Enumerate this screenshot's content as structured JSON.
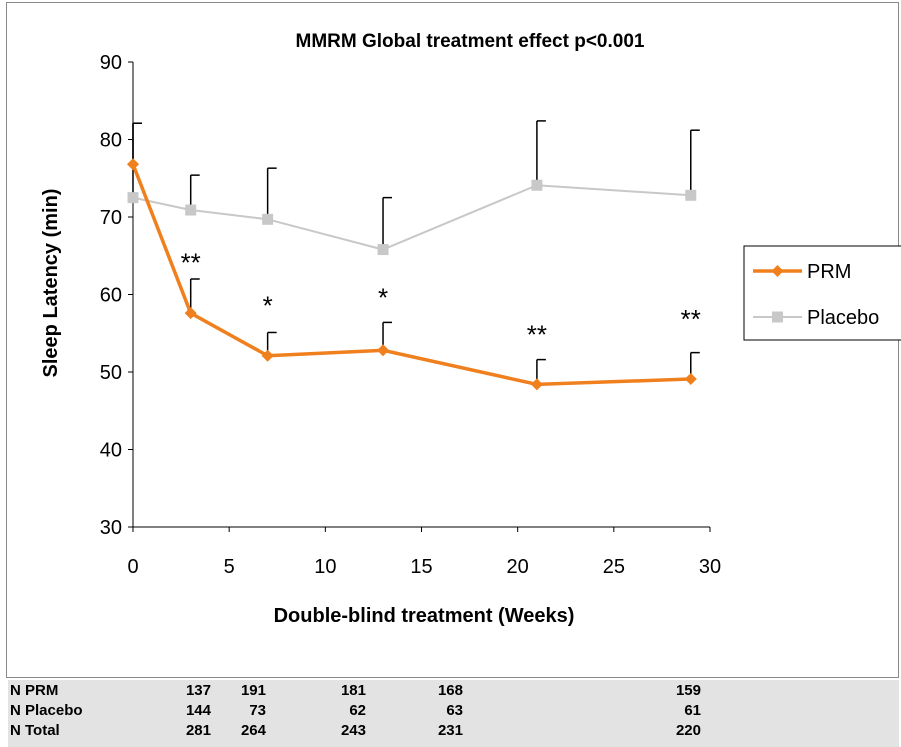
{
  "chart_data": {
    "type": "line",
    "title": "MMRM Global treatment effect p<0.001",
    "xlabel": "Double-blind treatment (Weeks)",
    "ylabel": "Sleep Latency (min)",
    "xlim": [
      0,
      30
    ],
    "ylim": [
      30,
      90
    ],
    "x_ticks": [
      0,
      5,
      10,
      15,
      20,
      25,
      30
    ],
    "y_ticks": [
      30,
      40,
      50,
      60,
      70,
      80,
      90
    ],
    "grid": false,
    "legend_position": "right",
    "series": [
      {
        "name": "PRM",
        "color": "#f07f1e",
        "marker": "diamond",
        "x": [
          0,
          3,
          7,
          13,
          21,
          29
        ],
        "y": [
          76.8,
          57.6,
          52.1,
          52.8,
          48.4,
          49.1
        ],
        "error_upper": [
          82.1,
          62.0,
          55.1,
          56.4,
          51.6,
          52.5
        ]
      },
      {
        "name": "Placebo",
        "color": "#c8c8c8",
        "marker": "square",
        "x": [
          0,
          3,
          7,
          13,
          21,
          29
        ],
        "y": [
          72.5,
          70.9,
          69.7,
          65.8,
          74.1,
          72.8
        ],
        "error_upper": [
          82.1,
          75.4,
          76.3,
          72.5,
          82.4,
          81.2
        ]
      }
    ],
    "annotations": [
      {
        "x": 3,
        "y": 64.5,
        "text": "**"
      },
      {
        "x": 7,
        "y": 59.0,
        "text": "*"
      },
      {
        "x": 13,
        "y": 60.0,
        "text": "*"
      },
      {
        "x": 21,
        "y": 55.2,
        "text": "**"
      },
      {
        "x": 29,
        "y": 57.2,
        "text": "**"
      }
    ]
  },
  "n_table": {
    "rows": [
      {
        "label": "N PRM",
        "values": [
          "137",
          "191",
          "181",
          "168",
          "159"
        ]
      },
      {
        "label": "N Placebo",
        "values": [
          "144",
          "73",
          "62",
          "63",
          "61"
        ]
      },
      {
        "label": "N Total",
        "values": [
          "281",
          "264",
          "243",
          "231",
          "220"
        ]
      }
    ]
  }
}
